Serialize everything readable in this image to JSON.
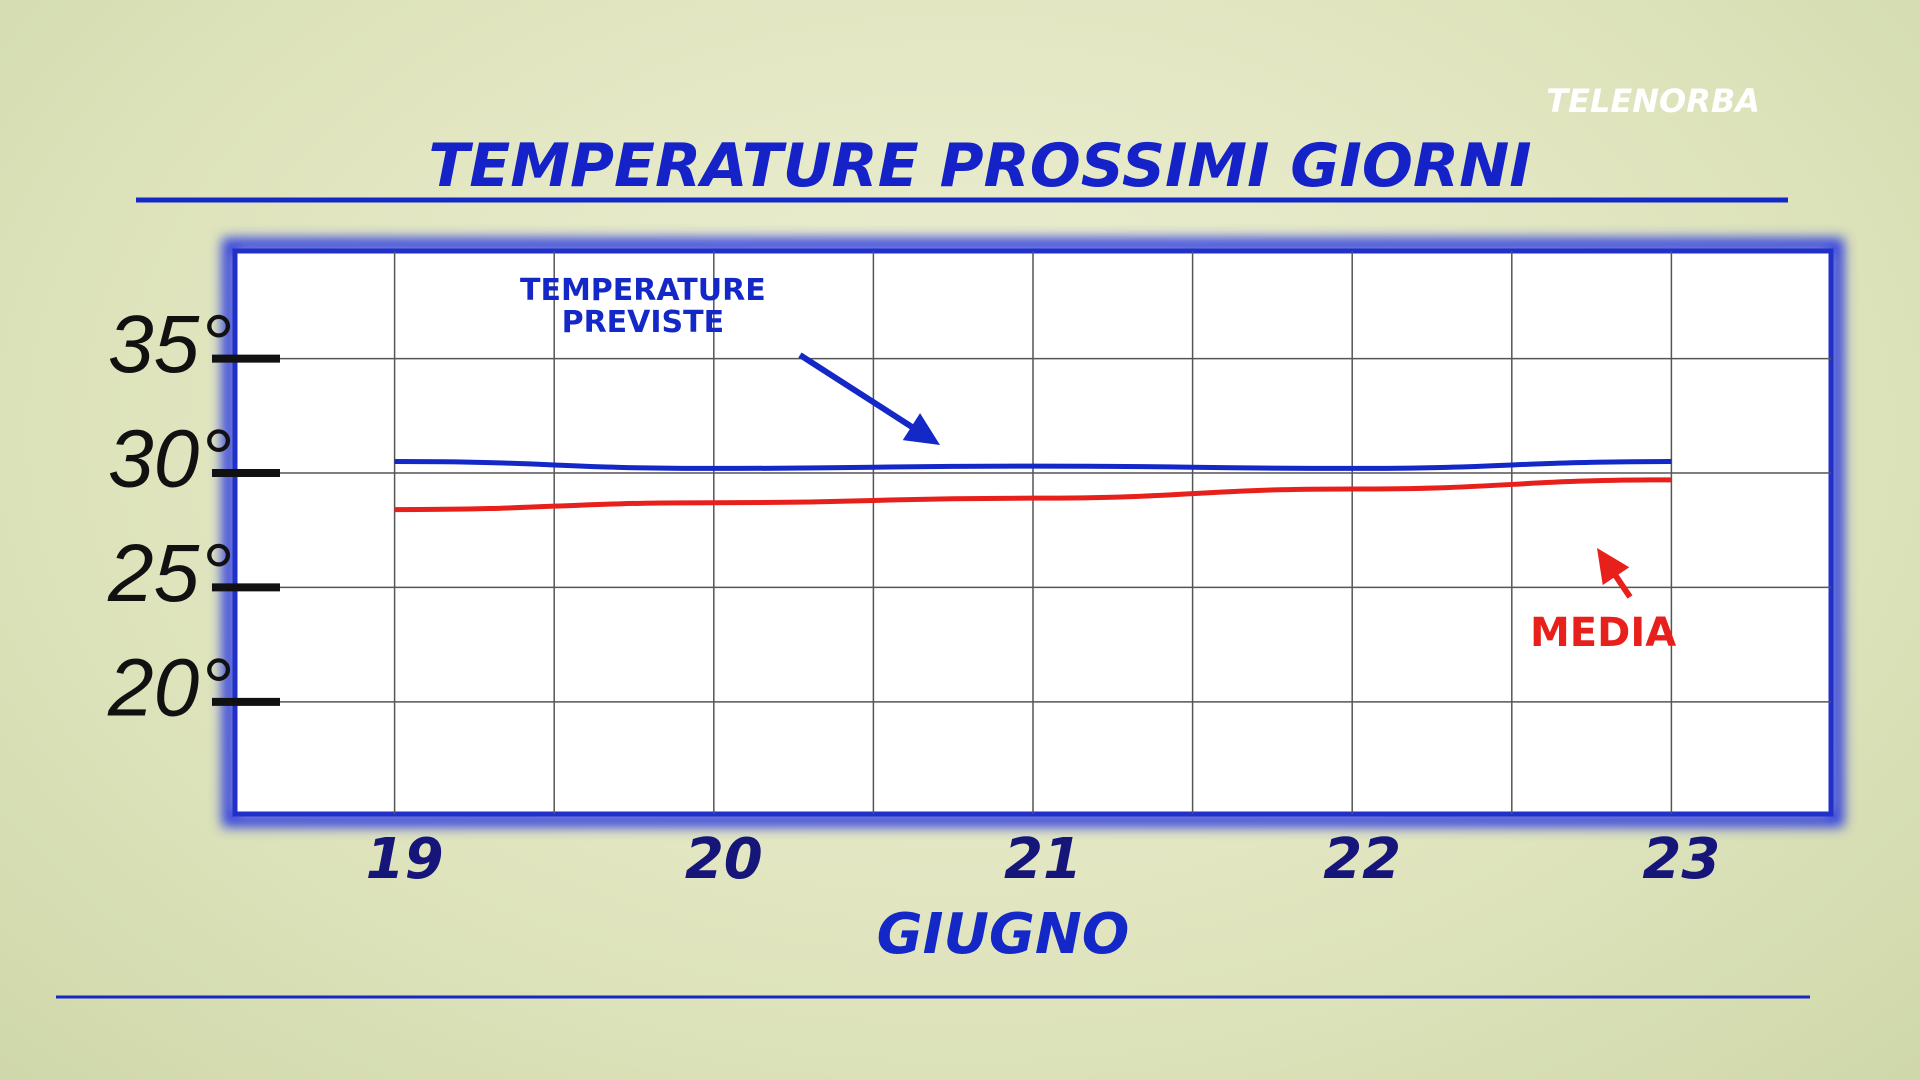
{
  "chart_data": {
    "type": "line",
    "title": "TEMPERATURE PROSSIMI GIORNI",
    "brand": "TELENORBA",
    "categories": [
      "19",
      "20",
      "21",
      "22",
      "23"
    ],
    "xlabel": "GIUGNO",
    "series": [
      {
        "name": "TEMPERATURE\nPREVISTE",
        "color": "#1428c8",
        "values": [
          30.5,
          30.2,
          30.3,
          30.2,
          30.5
        ]
      },
      {
        "name": "MEDIA",
        "color": "#e8201c",
        "values": [
          28.4,
          28.7,
          28.9,
          29.3,
          29.7
        ]
      }
    ],
    "ylim": [
      15.1,
      39.7
    ],
    "yticks": [
      {
        "value": 35,
        "label": "35°"
      },
      {
        "value": 30,
        "label": "30°"
      },
      {
        "value": 25,
        "label": "25°"
      },
      {
        "value": 20,
        "label": "20°"
      }
    ],
    "grid": true
  }
}
